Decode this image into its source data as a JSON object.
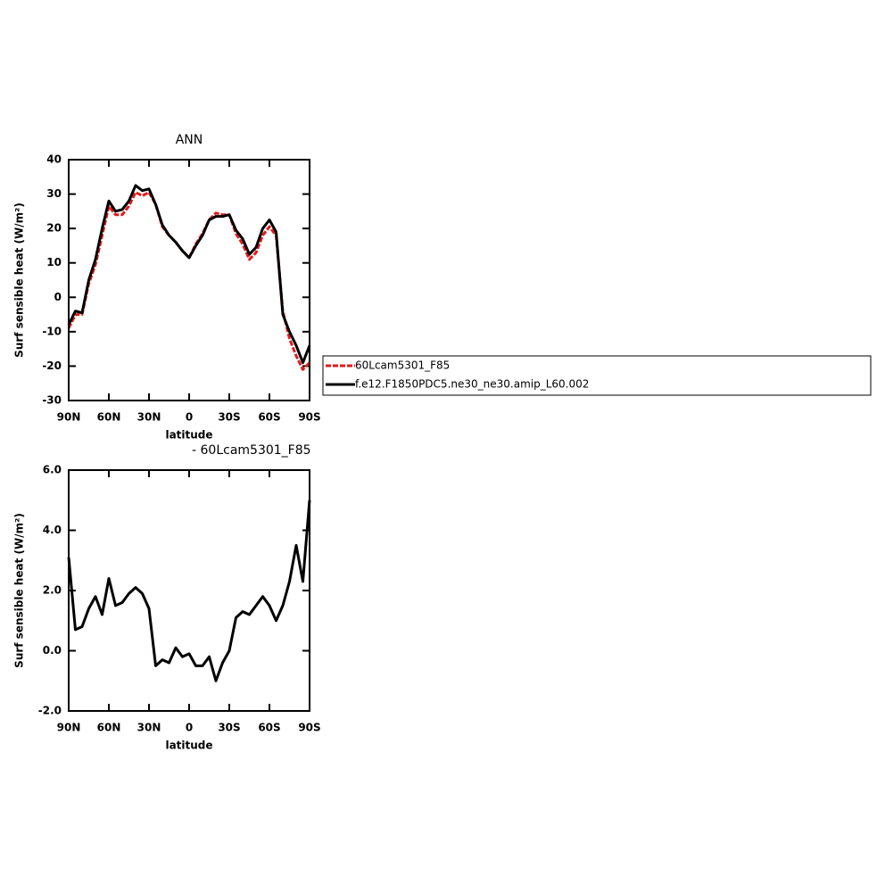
{
  "chart_data": [
    {
      "type": "line",
      "title": "ANN",
      "xlabel": "latitude",
      "ylabel": "Surf sensible heat (W/m²)",
      "x": [
        90,
        85,
        80,
        75,
        70,
        65,
        60,
        55,
        50,
        45,
        40,
        35,
        30,
        25,
        20,
        15,
        10,
        5,
        0,
        -5,
        -10,
        -15,
        -20,
        -25,
        -30,
        -35,
        -40,
        -45,
        -50,
        -55,
        -60,
        -65,
        -70,
        -75,
        -80,
        -85,
        -90
      ],
      "series": [
        {
          "name": "60Lcam5301_F85",
          "color": "#e41a1c",
          "dashed": true,
          "values": [
            -9,
            -5,
            -5,
            4,
            9.5,
            18,
            26.5,
            24,
            24,
            26.5,
            30.5,
            29.5,
            30.5,
            27,
            20.5,
            18,
            16,
            13.5,
            11.5,
            15.5,
            18.5,
            22.5,
            24.5,
            24,
            24,
            18.5,
            15.5,
            11,
            13,
            18,
            20.5,
            18,
            -4,
            -12,
            -17,
            -21,
            -19
          ]
        },
        {
          "name": "f.e12.F1850PDC5.ne30_ne30.amip_L60.002",
          "color": "#000000",
          "values": [
            -8,
            -4,
            -4.5,
            5,
            11,
            20,
            28,
            25,
            25.5,
            28,
            32.5,
            31,
            31.5,
            27,
            21,
            18,
            16,
            13.5,
            11.5,
            15,
            18,
            22.5,
            23.5,
            23.5,
            24,
            19.5,
            17,
            12.5,
            14.5,
            20,
            22.5,
            19,
            -5,
            -10,
            -14,
            -19,
            -14
          ]
        }
      ],
      "xlim": [
        90,
        -90
      ],
      "xticks": [
        {
          "value": 90,
          "label": "90N"
        },
        {
          "value": 60,
          "label": "60N"
        },
        {
          "value": 30,
          "label": "30N"
        },
        0,
        {
          "value": -30,
          "label": "30S"
        },
        {
          "value": -60,
          "label": "60S"
        },
        {
          "value": -90,
          "label": "90S"
        }
      ],
      "ylim": [
        -30,
        40
      ],
      "yticks": [
        -30,
        -20,
        -10,
        0,
        10,
        20,
        30,
        40
      ]
    },
    {
      "type": "line",
      "title": "- 60Lcam5301_F85",
      "xlabel": "latitude",
      "ylabel": "Surf sensible heat (W/m²)",
      "x": [
        90,
        85,
        80,
        75,
        70,
        65,
        60,
        55,
        50,
        45,
        40,
        35,
        30,
        25,
        20,
        15,
        10,
        5,
        0,
        -5,
        -10,
        -15,
        -20,
        -25,
        -30,
        -35,
        -40,
        -45,
        -50,
        -55,
        -60,
        -65,
        -70,
        -75,
        -80,
        -85,
        -90
      ],
      "color": "#000000",
      "values": [
        3.1,
        0.7,
        0.8,
        1.4,
        1.8,
        1.2,
        2.4,
        1.5,
        1.6,
        1.9,
        2.1,
        1.9,
        1.4,
        -0.5,
        -0.3,
        -0.4,
        0.1,
        -0.2,
        -0.1,
        -0.5,
        -0.5,
        -0.2,
        -1.0,
        -0.4,
        0.0,
        1.1,
        1.3,
        1.2,
        1.5,
        1.8,
        1.5,
        1.0,
        1.5,
        2.3,
        3.5,
        2.3,
        5.0
      ],
      "xlim": [
        90,
        -90
      ],
      "xticks": [
        {
          "value": 90,
          "label": "90N"
        },
        {
          "value": 60,
          "label": "60N"
        },
        {
          "value": 30,
          "label": "30N"
        },
        0,
        {
          "value": -30,
          "label": "30S"
        },
        {
          "value": -60,
          "label": "60S"
        },
        {
          "value": -90,
          "label": "90S"
        }
      ],
      "ylim": [
        -2,
        6
      ],
      "yticks": [
        {
          "value": -2,
          "label": "-2.0"
        },
        {
          "value": 0,
          "label": "0.0"
        },
        {
          "value": 2,
          "label": "2.0"
        },
        {
          "value": 4,
          "label": "4.0"
        },
        {
          "value": 6,
          "label": "6.0"
        }
      ]
    }
  ]
}
